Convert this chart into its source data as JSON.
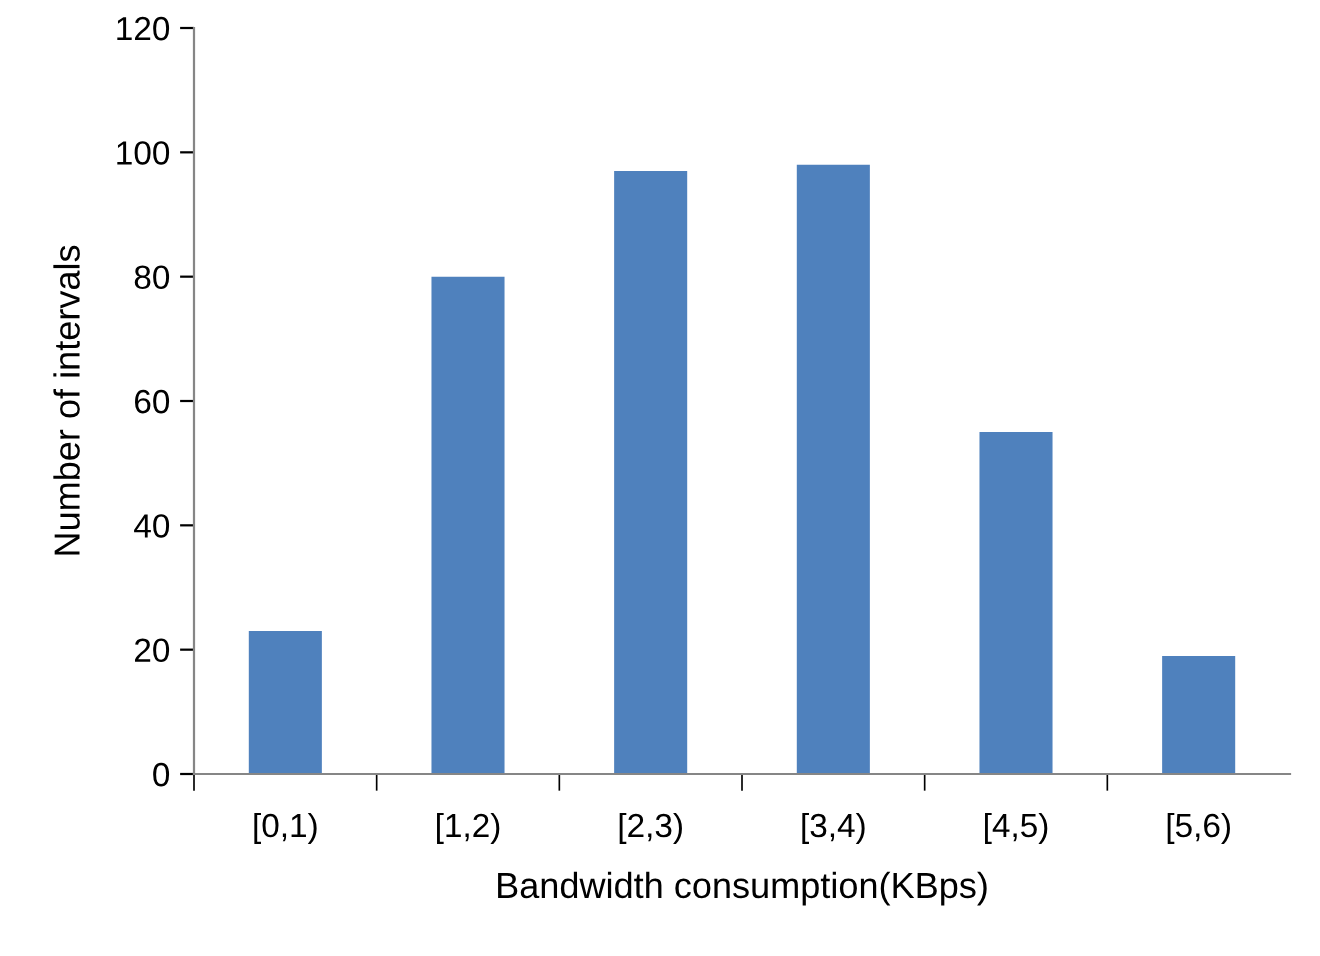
{
  "chart_data": {
    "type": "bar",
    "xlabel": "Bandwidth consumption(KBps)",
    "ylabel": "Number of intervals",
    "categories": [
      "[0,1)",
      "[1,2)",
      "[2,3)",
      "[3,4)",
      "[4,5)",
      "[5,6)"
    ],
    "values": [
      23,
      80,
      97,
      98,
      55,
      19
    ],
    "color": "#4f81bd",
    "ylim": [
      0,
      120
    ],
    "yticks": [
      0,
      20,
      40,
      60,
      80,
      100,
      120
    ],
    "grid": false,
    "legend": false
  }
}
